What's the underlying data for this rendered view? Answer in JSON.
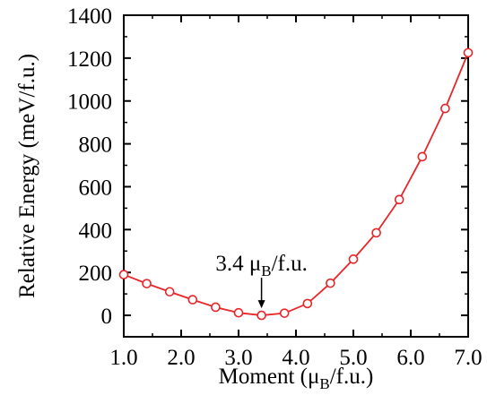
{
  "chart_data": {
    "type": "line",
    "title": "",
    "xlabel": {
      "prefix": "Moment (",
      "mu": "μ",
      "sub": "B",
      "suffix": "/f.u.)"
    },
    "ylabel": "Relative Energy (meV/f.u.)",
    "xlim": [
      1.0,
      7.0
    ],
    "ylim": [
      -100,
      1400
    ],
    "xticks": [
      "1.0",
      "2.0",
      "3.0",
      "4.0",
      "5.0",
      "6.0",
      "7.0"
    ],
    "yticks": [
      "0",
      "200",
      "400",
      "600",
      "800",
      "1000",
      "1200",
      "1400"
    ],
    "grid": false,
    "series": [
      {
        "color": "#e8262a",
        "marker": "open-circle",
        "x": [
          1.0,
          1.4,
          1.8,
          2.2,
          2.6,
          3.0,
          3.4,
          3.8,
          4.2,
          4.6,
          5.0,
          5.4,
          5.8,
          6.2,
          6.6,
          7.0
        ],
        "y": [
          190,
          148,
          110,
          73,
          38,
          12,
          0,
          10,
          55,
          150,
          262,
          385,
          540,
          740,
          965,
          1225
        ]
      }
    ],
    "annotation": {
      "value": "3.4",
      "mu": "μ",
      "sub": "B",
      "suffix": "/f.u.",
      "x": 3.4,
      "y": 0
    }
  }
}
